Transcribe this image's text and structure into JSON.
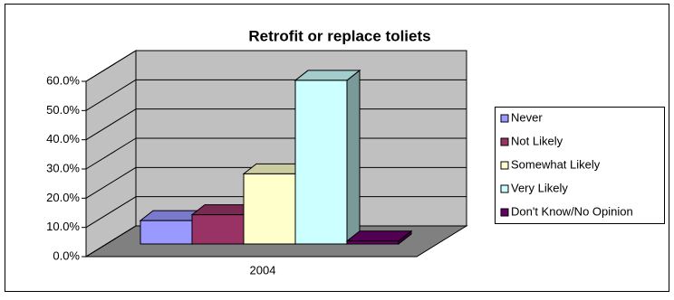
{
  "chart_data": {
    "type": "bar3d",
    "title": "Retrofit or replace toliets",
    "categories": [
      "2004"
    ],
    "series": [
      {
        "name": "Never",
        "color": "#9999ff",
        "values": [
          8
        ]
      },
      {
        "name": "Not Likely",
        "color": "#993366",
        "values": [
          10
        ]
      },
      {
        "name": "Somewhat Likely",
        "color": "#ffffcc",
        "values": [
          24
        ]
      },
      {
        "name": "Very Likely",
        "color": "#ccffff",
        "values": [
          56
        ]
      },
      {
        "name": "Don't Know/No Opinion",
        "color": "#660066",
        "values": [
          1
        ]
      }
    ],
    "ylim": [
      0,
      60
    ],
    "yticks": [
      {
        "value": 0,
        "label": "0.0%"
      },
      {
        "value": 10,
        "label": "10.0%"
      },
      {
        "value": 20,
        "label": "20.0%"
      },
      {
        "value": 30,
        "label": "30.0%"
      },
      {
        "value": 40,
        "label": "40.0%"
      },
      {
        "value": 50,
        "label": "50.0%"
      },
      {
        "value": 60,
        "label": "60.0%"
      }
    ],
    "grid": true,
    "legend": "right"
  }
}
